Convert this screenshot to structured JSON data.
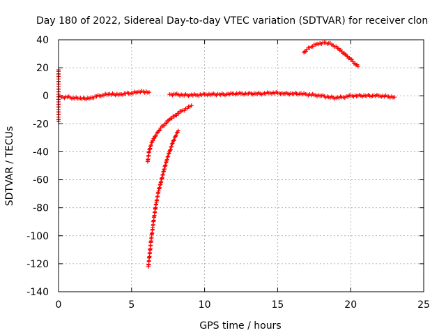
{
  "chart_data": {
    "type": "scatter",
    "title": "Day 180 of 2022, Sidereal Day-to-day VTEC variation (SDTVAR) for receiver clon",
    "xlabel": "GPS time / hours",
    "ylabel": "SDTVAR / TECUs",
    "xlim": [
      0,
      25
    ],
    "ylim": [
      -140,
      40
    ],
    "xticks": [
      0,
      5,
      10,
      15,
      20,
      25
    ],
    "yticks": [
      -140,
      -120,
      -100,
      -80,
      -60,
      -40,
      -20,
      0,
      20,
      40
    ],
    "grid": true,
    "marker": "+",
    "color": "#ff0000",
    "series": [
      {
        "x": [
          0.2,
          0.6,
          1.0,
          1.4,
          1.8,
          2.2,
          2.6,
          3.0,
          3.4,
          3.8,
          4.2,
          4.6,
          5.0,
          5.4,
          5.8,
          6.2
        ],
        "y": [
          -1,
          -1,
          -1.5,
          -2,
          -2,
          -1.5,
          -0.5,
          0.5,
          1,
          1,
          1,
          1.5,
          2,
          2.5,
          3,
          2.5
        ]
      },
      {
        "x": [
          7.6,
          8.0,
          8.5,
          9.0,
          9.5,
          10.0,
          10.5,
          11.0,
          11.5,
          12.0,
          12.5,
          13.0,
          13.5,
          14.0,
          14.5,
          15.0,
          15.5,
          16.0,
          16.5,
          17.0,
          17.5,
          18.0,
          18.5,
          19.0,
          19.5,
          20.0,
          20.5,
          21.0,
          21.5,
          22.0,
          22.5,
          23.0
        ],
        "y": [
          1,
          1,
          0.5,
          0.5,
          0.5,
          1,
          1,
          1,
          1,
          1.5,
          1.5,
          1.5,
          1.5,
          1.5,
          2,
          2,
          1.5,
          1.5,
          1.5,
          1,
          0.5,
          0,
          -1,
          -1.5,
          -1,
          0,
          0,
          0,
          0,
          0,
          -0.5,
          -1
        ]
      },
      {
        "x": [
          6.1,
          6.2,
          6.3,
          6.45,
          6.6,
          6.8,
          7.0,
          7.3,
          7.6,
          8.0,
          8.4,
          8.8,
          9.1
        ],
        "y": [
          -47,
          -40,
          -36,
          -32,
          -29,
          -26,
          -23,
          -20,
          -17,
          -14,
          -11,
          -9,
          -7
        ]
      },
      {
        "x": [
          6.15,
          6.25,
          6.35,
          6.45,
          6.55,
          6.7,
          6.85,
          7.0,
          7.2,
          7.4,
          7.6,
          7.8,
          8.0,
          8.2
        ],
        "y": [
          -122,
          -112,
          -102,
          -94,
          -86,
          -76,
          -68,
          -62,
          -54,
          -46,
          -40,
          -34,
          -29,
          -25
        ]
      },
      {
        "x": [
          16.8,
          17.0,
          17.3,
          17.6,
          17.9,
          18.2,
          18.5,
          18.8,
          19.1,
          19.4,
          19.7,
          20.0,
          20.3,
          20.5
        ],
        "y": [
          31,
          33,
          35,
          36.5,
          37.5,
          38,
          37.5,
          36,
          34,
          31.5,
          29,
          26,
          23,
          21
        ]
      },
      {
        "x": [
          0,
          0
        ],
        "y": [
          18.5,
          -18.5
        ]
      }
    ]
  }
}
